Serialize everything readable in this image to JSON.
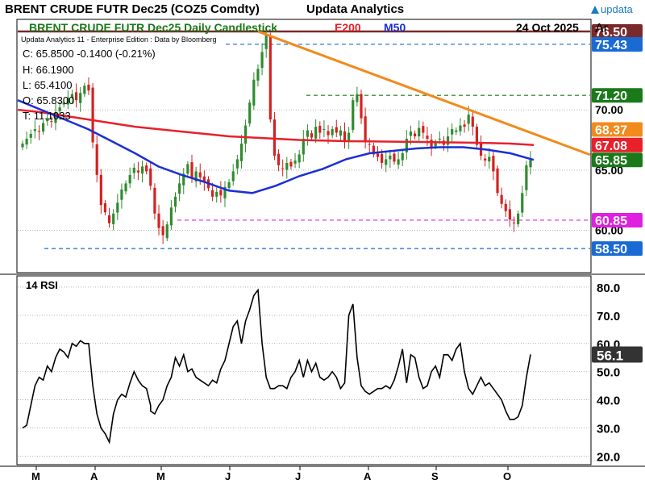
{
  "header": {
    "title": "BRENT CRUDE FUTR  Dec25 (COZ5 Comdty)",
    "vendor": "Updata Analytics",
    "logo_text": "updata"
  },
  "price_panel": {
    "title": "BRENT CRUDE FUTR  Dec25 Daily Candlestick",
    "indicator_e200": "E200",
    "indicator_m50": "M50",
    "date": "24 Oct 2025",
    "axis_label": "Ar",
    "edition_text": "Updata Analytics 11 - Enterprise Edition : Data by Bloomberg",
    "ohlc": {
      "close": "C: 65.8500  -0.1400 (-0.21%)",
      "high": "H: 66.1900",
      "low": "L: 65.4100",
      "open": "O: 65.8300",
      "volume": "T: 11.1033"
    }
  },
  "rsi_panel": {
    "title": "14 RSI"
  },
  "colors": {
    "bull": "#2e8b2e",
    "bear": "#d42020",
    "e200": "#e8202a",
    "m50": "#1a2fd4",
    "trend": "#f28a1c",
    "support_dash": "#1a6ad4",
    "resist_dash": "#1a7a1a",
    "magenta": "#e020e0",
    "top_line": "#7a2a2a"
  },
  "chart_data": [
    {
      "type": "candlestick",
      "x_labels": [
        "M",
        "A",
        "M",
        "J",
        "J",
        "A",
        "S",
        "O"
      ],
      "y_ticks": [
        "60.00",
        "65.00",
        "70.00"
      ],
      "ylim": [
        56.5,
        77.5
      ],
      "levels": [
        {
          "label": "76.50",
          "value": 76.5,
          "color": "#7a2a2a"
        },
        {
          "label": "75.43",
          "value": 75.43,
          "color": "#1a6ad4"
        },
        {
          "label": "71.20",
          "value": 71.2,
          "color": "#1a7a1a"
        },
        {
          "label": "68.37",
          "value": 68.37,
          "color": "#f28a1c"
        },
        {
          "label": "67.08",
          "value": 67.08,
          "color": "#e8202a"
        },
        {
          "label": "65.85",
          "value": 65.85,
          "color": "#1a7a1a"
        },
        {
          "label": "60.85",
          "value": 60.85,
          "color": "#e020e0"
        },
        {
          "label": "58.50",
          "value": 58.5,
          "color": "#1a6ad4"
        }
      ],
      "close_series": [
        67.2,
        67.6,
        68.0,
        68.4,
        68.2,
        68.9,
        69.3,
        69.0,
        69.8,
        70.2,
        70.6,
        71.0,
        71.3,
        70.8,
        71.4,
        72.0,
        71.6,
        67.3,
        64.6,
        62.1,
        61.5,
        60.6,
        61.4,
        62.3,
        63.4,
        63.9,
        64.6,
        65.2,
        64.8,
        65.3,
        64.9,
        63.7,
        61.4,
        60.2,
        59.6,
        60.5,
        61.9,
        62.8,
        63.9,
        64.7,
        65.5,
        64.3,
        64.9,
        64.4,
        64.0,
        63.5,
        62.8,
        63.2,
        62.9,
        63.6,
        64.0,
        64.9,
        65.9,
        67.2,
        68.7,
        70.6,
        72.5,
        73.4,
        74.8,
        76.3,
        69.2,
        66.2,
        65.4,
        65.1,
        65.6,
        65.3,
        65.8,
        66.3,
        67.6,
        68.3,
        67.7,
        68.6,
        68.1,
        68.4,
        67.9,
        68.4,
        68.1,
        68.3,
        67.4,
        68.1,
        70.8,
        71.3,
        69.3,
        67.4,
        67.1,
        66.3,
        66.1,
        65.6,
        65.9,
        66.2,
        65.7,
        65.9,
        66.4,
        67.6,
        68.2,
        67.8,
        68.5,
        68.1,
        67.6,
        66.9,
        67.3,
        67.6,
        67.1,
        67.8,
        68.4,
        68.3,
        68.7,
        68.6,
        69.6,
        68.6,
        67.1,
        66.2,
        65.8,
        66.1,
        64.9,
        63.1,
        62.2,
        61.6,
        60.9,
        60.6,
        61.4,
        63.1,
        65.4,
        65.85
      ],
      "e200_series": [
        70.0,
        69.8,
        69.5,
        69.2,
        68.9,
        68.6,
        68.4,
        68.2,
        68.0,
        67.8,
        67.7,
        67.6,
        67.5,
        67.45,
        67.4,
        67.38,
        67.36,
        67.34,
        67.31,
        67.28,
        67.25,
        67.2,
        67.08
      ],
      "m50_series": [
        70.8,
        70.0,
        69.2,
        68.4,
        67.4,
        66.4,
        65.3,
        64.6,
        64.0,
        63.3,
        63.1,
        63.7,
        64.5,
        65.1,
        65.9,
        66.4,
        66.6,
        66.8,
        66.9,
        66.9,
        66.7,
        66.4,
        65.85
      ],
      "trendline": [
        {
          "index": 57,
          "value": 76.5
        },
        {
          "index": 127,
          "value": 67.6
        }
      ]
    },
    {
      "type": "line",
      "title": "14 RSI",
      "y_ticks": [
        "20.0",
        "30.0",
        "40.0",
        "50.0",
        "60.0",
        "70.0",
        "80.0"
      ],
      "ylim": [
        17,
        84
      ],
      "last_value": "56.1",
      "values": [
        30,
        31,
        38,
        45,
        48,
        47,
        52,
        50,
        55,
        58,
        57,
        55,
        60,
        59,
        61,
        60,
        60,
        45,
        35,
        30,
        28,
        25,
        35,
        40,
        42,
        41,
        46,
        50,
        47,
        45,
        44,
        38,
        36,
        35,
        38,
        40,
        45,
        48,
        55,
        52,
        56,
        50,
        51,
        48,
        47,
        46,
        45,
        47,
        46,
        51,
        54,
        60,
        66,
        68,
        60,
        68,
        72,
        77,
        79,
        60,
        48,
        44,
        44,
        45,
        45,
        44,
        48,
        50,
        54,
        48,
        54,
        50,
        53,
        48,
        47,
        48,
        50,
        48,
        44,
        46,
        70,
        74,
        55,
        45,
        43,
        42,
        43,
        44,
        44,
        45,
        44,
        47,
        52,
        58,
        58,
        46,
        56,
        55,
        48,
        44,
        45,
        50,
        52,
        48,
        56,
        56,
        54,
        58,
        60,
        50,
        44,
        42,
        45,
        48,
        45,
        46,
        44,
        42,
        40,
        36,
        33,
        33,
        34,
        38,
        48,
        56.1
      ],
      "midline": 50
    }
  ]
}
